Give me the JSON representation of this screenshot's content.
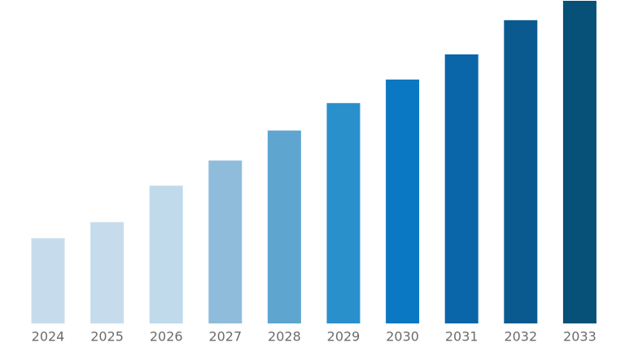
{
  "chart_data": {
    "type": "bar",
    "categories": [
      "2024",
      "2025",
      "2026",
      "2027",
      "2028",
      "2029",
      "2030",
      "2031",
      "2032",
      "2033"
    ],
    "values": [
      26.4,
      31.4,
      42.7,
      50.5,
      59.8,
      68.3,
      75.6,
      83.4,
      94.0,
      100
    ],
    "colors": [
      "#c6dcec",
      "#c6dcec",
      "#c0d9eb",
      "#8fbcdb",
      "#5ea5d0",
      "#2a90cc",
      "#0a78c2",
      "#0a66a8",
      "#0a5a90",
      "#075077"
    ]
  }
}
